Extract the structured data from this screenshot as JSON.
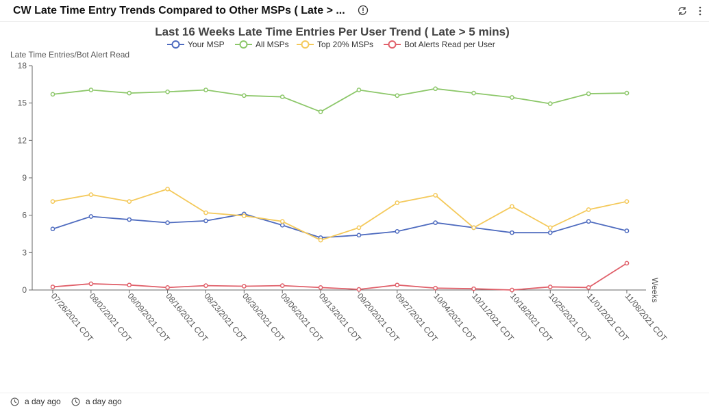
{
  "panel": {
    "title": "CW Late Time Entry Trends Compared to Other MSPs ( Late > ...",
    "info_icon": "info-circle-icon",
    "refresh_icon": "refresh-icon",
    "menu_icon": "kebab-menu-icon"
  },
  "footer": {
    "left_time": "a day ago",
    "right_time": "a day ago",
    "icon": "clock-icon"
  },
  "chart_data": {
    "type": "line",
    "title": "Last 16 Weeks Late Time Entries Per User Trend ( Late > 5 mins)",
    "ylabel": "Late Time Entries/Bot Alert Read",
    "xlabel": "Weeks",
    "ylim": [
      0,
      18
    ],
    "yticks": [
      0,
      3,
      6,
      9,
      12,
      15,
      18
    ],
    "grid": false,
    "legend_position": "top",
    "categories": [
      "07/26/2021 CDT",
      "08/02/2021 CDT",
      "08/09/2021 CDT",
      "08/16/2021 CDT",
      "08/23/2021 CDT",
      "08/30/2021 CDT",
      "09/06/2021 CDT",
      "09/13/2021 CDT",
      "09/20/2021 CDT",
      "09/27/2021 CDT",
      "10/04/2021 CDT",
      "10/11/2021 CDT",
      "10/18/2021 CDT",
      "10/25/2021 CDT",
      "11/01/2021 CDT",
      "11/08/2021 CDT"
    ],
    "series": [
      {
        "name": "Your MSP",
        "color": "#4e6bbf",
        "values": [
          4.9,
          5.9,
          5.65,
          5.4,
          5.55,
          6.1,
          5.2,
          4.2,
          4.4,
          4.7,
          5.4,
          5.0,
          4.6,
          4.6,
          5.5,
          4.75
        ]
      },
      {
        "name": "All MSPs",
        "color": "#8cc769",
        "values": [
          15.7,
          16.05,
          15.8,
          15.9,
          16.05,
          15.6,
          15.5,
          14.3,
          16.05,
          15.6,
          16.15,
          15.8,
          15.45,
          14.95,
          15.75,
          15.8
        ]
      },
      {
        "name": "Top 20% MSPs",
        "color": "#f4c95a",
        "values": [
          7.1,
          7.65,
          7.1,
          8.1,
          6.2,
          5.95,
          5.5,
          4.0,
          5.0,
          7.0,
          7.6,
          5.0,
          6.7,
          5.0,
          6.45,
          7.1
        ]
      },
      {
        "name": "Bot Alerts Read per User",
        "color": "#e0606a",
        "values": [
          0.25,
          0.5,
          0.4,
          0.2,
          0.35,
          0.3,
          0.35,
          0.2,
          0.05,
          0.4,
          0.15,
          0.1,
          0.0,
          0.25,
          0.2,
          2.15
        ]
      }
    ]
  }
}
